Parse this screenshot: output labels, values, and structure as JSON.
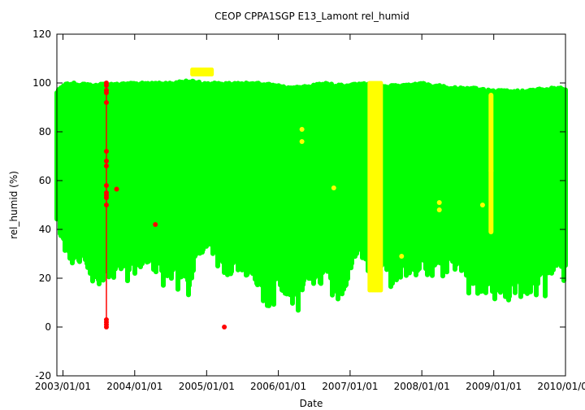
{
  "chart_data": {
    "type": "scatter",
    "title": "CEOP  CPPA1SGP E13_Lamont  rel_humid",
    "xlabel": "Date",
    "ylabel": "rel_humid (%)",
    "ylim": [
      -20,
      120
    ],
    "yticks": [
      -20,
      0,
      20,
      40,
      60,
      80,
      100,
      120
    ],
    "xlim": [
      "2002-12-01",
      "2010-01-01"
    ],
    "xticks": [
      "2003/01/01",
      "2004/01/01",
      "2005/01/01",
      "2006/01/01",
      "2007/01/01",
      "2008/01/01",
      "2009/01/01",
      "2010/01/01"
    ],
    "grid": false,
    "legend": "none",
    "colors": {
      "good": "#00ff00",
      "suspect": "#ffff00",
      "bad": "#ff0000",
      "axes": "#000000"
    },
    "series": [
      {
        "color": "good",
        "style": "dense band",
        "envelope": [
          {
            "date": "2002-12-01",
            "max": 97,
            "min": 40
          },
          {
            "date": "2003-01-15",
            "max": 100,
            "min": 28
          },
          {
            "date": "2003-04-01",
            "max": 100,
            "min": 24
          },
          {
            "date": "2003-06-01",
            "max": 99,
            "min": 17
          },
          {
            "date": "2003-08-01",
            "max": 100,
            "min": 18
          },
          {
            "date": "2003-10-01",
            "max": 100,
            "min": 24
          },
          {
            "date": "2004-01-01",
            "max": 100,
            "min": 22
          },
          {
            "date": "2004-04-01",
            "max": 100,
            "min": 28
          },
          {
            "date": "2004-07-01",
            "max": 100,
            "min": 18
          },
          {
            "date": "2004-10-01",
            "max": 101,
            "min": 17
          },
          {
            "date": "2005-01-01",
            "max": 100,
            "min": 33
          },
          {
            "date": "2005-04-01",
            "max": 100,
            "min": 20
          },
          {
            "date": "2005-07-01",
            "max": 100,
            "min": 23
          },
          {
            "date": "2005-10-01",
            "max": 100,
            "min": 15
          },
          {
            "date": "2006-01-01",
            "max": 99,
            "min": 14
          },
          {
            "date": "2006-03-01",
            "max": 98,
            "min": 9
          },
          {
            "date": "2006-06-01",
            "max": 99,
            "min": 17
          },
          {
            "date": "2006-09-01",
            "max": 100,
            "min": 18
          },
          {
            "date": "2006-12-01",
            "max": 99,
            "min": 12
          },
          {
            "date": "2007-03-01",
            "max": 100,
            "min": 30
          },
          {
            "date": "2007-06-01",
            "max": 99,
            "min": 25
          },
          {
            "date": "2007-09-01",
            "max": 99,
            "min": 20
          },
          {
            "date": "2008-01-01",
            "max": 100,
            "min": 22
          },
          {
            "date": "2008-04-01",
            "max": 99,
            "min": 20
          },
          {
            "date": "2008-07-01",
            "max": 98,
            "min": 24
          },
          {
            "date": "2008-10-01",
            "max": 98,
            "min": 15
          },
          {
            "date": "2009-01-01",
            "max": 97,
            "min": 13
          },
          {
            "date": "2009-04-01",
            "max": 97,
            "min": 12
          },
          {
            "date": "2009-07-01",
            "max": 97,
            "min": 15
          },
          {
            "date": "2009-10-01",
            "max": 98,
            "min": 19
          },
          {
            "date": "2010-01-01",
            "max": 98,
            "min": 25
          }
        ]
      },
      {
        "color": "suspect",
        "style": "points",
        "blocks": [
          {
            "start": "2004-10-20",
            "end": "2005-01-31",
            "ymin": 103.5,
            "ymax": 105.5
          },
          {
            "start": "2007-04-10",
            "end": "2007-06-10",
            "ymin": 15,
            "ymax": 100
          }
        ],
        "column": {
          "date": "2008-12-18",
          "ymin": 39,
          "ymax": 95
        },
        "points": [
          {
            "x": "2006-05-01",
            "y": 81
          },
          {
            "x": "2006-05-01",
            "y": 76
          },
          {
            "x": "2006-10-10",
            "y": 57
          },
          {
            "x": "2007-09-20",
            "y": 29
          },
          {
            "x": "2008-03-30",
            "y": 51
          },
          {
            "x": "2008-03-30",
            "y": 48
          },
          {
            "x": "2008-11-05",
            "y": 50
          },
          {
            "x": "2008-12-18",
            "y": 64
          }
        ]
      },
      {
        "color": "bad",
        "style": "points",
        "line": {
          "date": "2003-08-10",
          "ymin": 0,
          "ymax": 100
        },
        "points": [
          {
            "x": "2003-08-10",
            "y": 100
          },
          {
            "x": "2003-08-10",
            "y": 99
          },
          {
            "x": "2003-08-10",
            "y": 97
          },
          {
            "x": "2003-08-10",
            "y": 96
          },
          {
            "x": "2003-08-10",
            "y": 92
          },
          {
            "x": "2003-08-10",
            "y": 72
          },
          {
            "x": "2003-08-10",
            "y": 68
          },
          {
            "x": "2003-08-10",
            "y": 66
          },
          {
            "x": "2003-08-10",
            "y": 58
          },
          {
            "x": "2003-08-10",
            "y": 55
          },
          {
            "x": "2003-08-10",
            "y": 54
          },
          {
            "x": "2003-08-10",
            "y": 53
          },
          {
            "x": "2003-08-10",
            "y": 50
          },
          {
            "x": "2003-08-10",
            "y": 3
          },
          {
            "x": "2003-08-10",
            "y": 2
          },
          {
            "x": "2003-08-10",
            "y": 1
          },
          {
            "x": "2003-08-10",
            "y": 0
          },
          {
            "x": "2003-10-01",
            "y": 56.5
          },
          {
            "x": "2004-04-15",
            "y": 42
          },
          {
            "x": "2005-04-01",
            "y": 0
          }
        ]
      }
    ]
  }
}
